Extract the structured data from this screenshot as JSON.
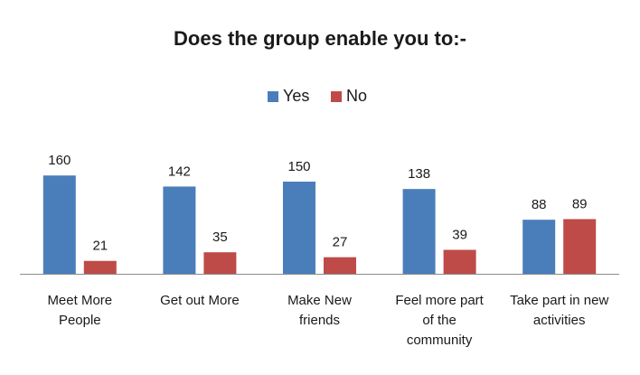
{
  "chart_data": {
    "type": "bar",
    "title": "Does the group enable you to:-",
    "xlabel": "",
    "ylabel": "",
    "ylim": [
      0,
      170
    ],
    "grid": false,
    "legend_position": "top-center",
    "categories": [
      [
        "Meet More",
        "People"
      ],
      [
        "Get out More"
      ],
      [
        "Make New",
        "friends"
      ],
      [
        "Feel more part",
        "of the",
        "community"
      ],
      [
        "Take part in new",
        "activities"
      ]
    ],
    "series": [
      {
        "name": "Yes",
        "color": "#4a7ebb",
        "values": [
          160,
          142,
          150,
          138,
          88
        ]
      },
      {
        "name": "No",
        "color": "#be4b48",
        "values": [
          21,
          35,
          27,
          39,
          89
        ]
      }
    ]
  }
}
